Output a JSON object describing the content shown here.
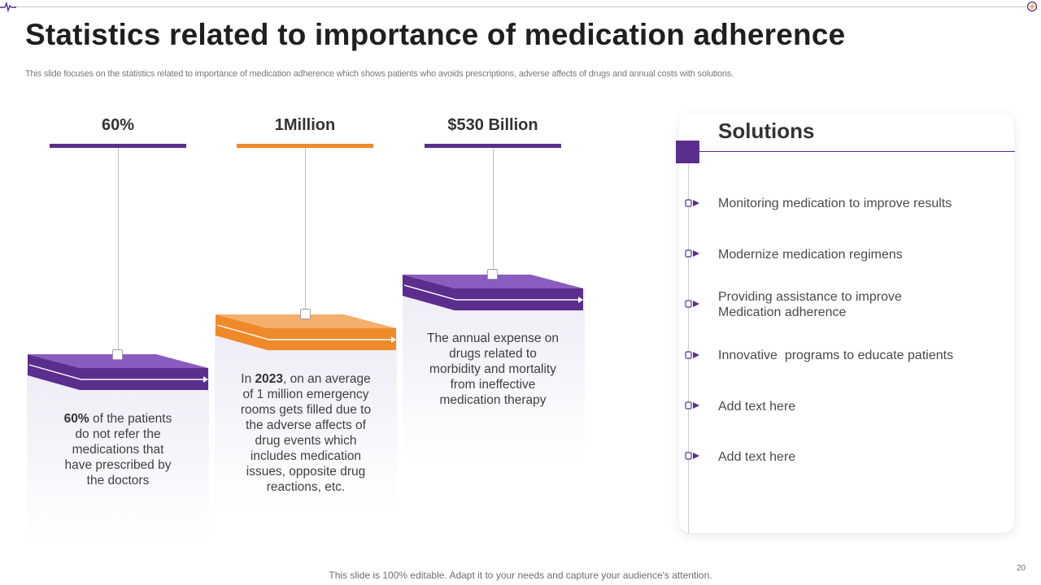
{
  "header": {
    "title": "Statistics related to importance of medication adherence",
    "subtitle": "This slide focuses on the statistics related to importance of medication adherence which shows patients who avoids prescriptions, adverse affects of drugs and annual costs with solutions."
  },
  "stats": [
    {
      "value": "60%",
      "color": "#5b2e8e",
      "text_bold": "60%",
      "text_rest": " of the patients do not refer the medications that have prescribed by the doctors"
    },
    {
      "value": "1Million",
      "color": "#ef8a2a",
      "text_pre": "In ",
      "text_bold": "2023",
      "text_rest": ", on an average of 1 million emergency rooms gets filled due to the adverse affects of drug events which includes medication issues, opposite drug reactions, etc."
    },
    {
      "value": "$530 Billion",
      "color": "#5b2e8e",
      "text": "The annual expense on drugs related to morbidity and mortality from ineffective medication therapy"
    }
  ],
  "solutions": {
    "title": "Solutions",
    "items": [
      "Monitoring medication to improve results",
      "Modernize medication regimens",
      "Providing assistance to improve Medication adherence",
      "Innovative  programs to educate patients",
      "Add text here",
      "Add text here"
    ]
  },
  "footer": {
    "text": "This slide is 100% editable. Adapt it to your needs and capture your audience's attention.",
    "page_number": "20"
  },
  "colors": {
    "purple": "#5b2e8e",
    "purple_light": "#8a5cbf",
    "orange": "#ef8a2a",
    "orange_light": "#f5ae6b"
  },
  "icons": {
    "top_left": "pulse-icon",
    "top_right": "target-icon",
    "bullet": "bullet-arrow-icon"
  }
}
